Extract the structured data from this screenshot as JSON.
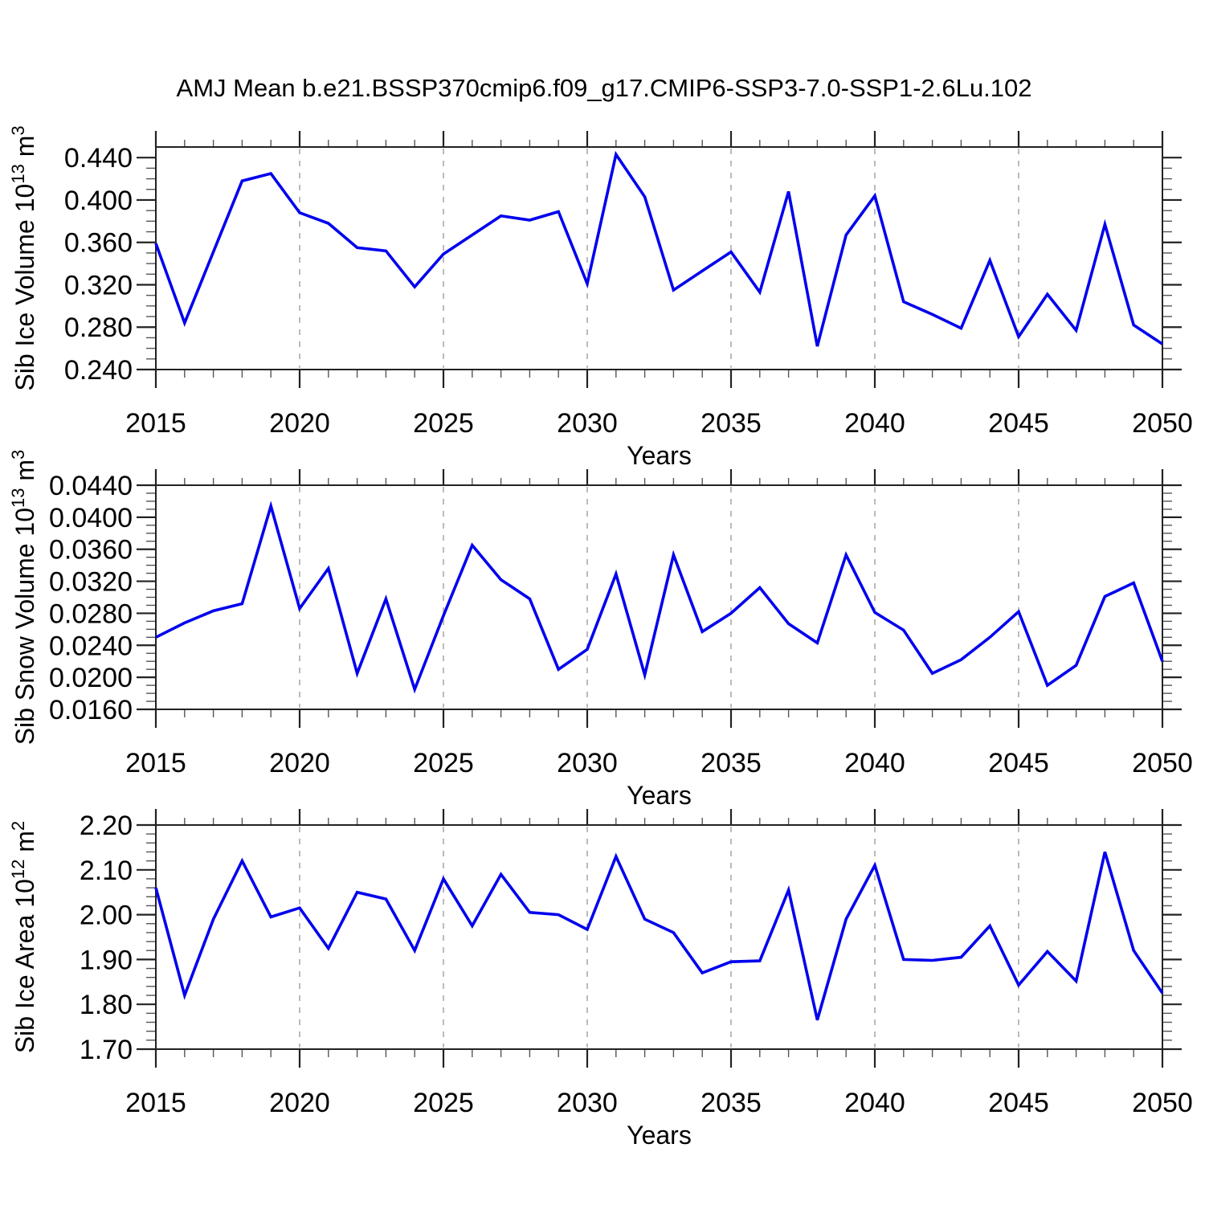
{
  "title": "AMJ Mean b.e21.BSSP370cmip6.f09_g17.CMIP6-SSP3-7.0-SSP1-2.6Lu.102",
  "background_color": "#ffffff",
  "line_color": "#0000ee",
  "grid_color": "#aaaaaa",
  "frame_color": "#222222",
  "chart_data": [
    {
      "type": "line",
      "name": "sib-ice-volume",
      "ylabel": {
        "base": "Sib Ice Volume 10",
        "exp": "13",
        "unit": " m",
        "unit_exp": "3"
      },
      "xlabel": "Years",
      "x": [
        2015,
        2016,
        2017,
        2018,
        2019,
        2020,
        2021,
        2022,
        2023,
        2024,
        2025,
        2026,
        2027,
        2028,
        2029,
        2030,
        2031,
        2032,
        2033,
        2034,
        2035,
        2036,
        2037,
        2038,
        2039,
        2040,
        2041,
        2042,
        2043,
        2044,
        2045,
        2046,
        2047,
        2048,
        2049,
        2050
      ],
      "values": [
        0.359,
        0.284,
        0.351,
        0.418,
        0.425,
        0.388,
        0.378,
        0.355,
        0.352,
        0.318,
        0.349,
        0.367,
        0.385,
        0.381,
        0.389,
        0.321,
        0.443,
        0.403,
        0.315,
        0.333,
        0.351,
        0.313,
        0.408,
        0.262,
        0.367,
        0.404,
        0.304,
        0.292,
        0.279,
        0.343,
        0.271,
        0.311,
        0.277,
        0.377,
        0.282,
        0.264
      ],
      "xlim": [
        2015,
        2050
      ],
      "ylim": [
        0.24,
        0.45
      ],
      "ytick_values": [
        0.24,
        0.28,
        0.32,
        0.36,
        0.4,
        0.44
      ],
      "ytick_labels": [
        "0.240",
        "0.280",
        "0.320",
        "0.360",
        "0.400",
        "0.440"
      ],
      "y_minor_step": 0.01,
      "xticks_major": [
        2015,
        2020,
        2025,
        2030,
        2035,
        2040,
        2045,
        2050
      ],
      "x_minor_step": 1,
      "gridlines_x": [
        2020,
        2025,
        2030,
        2035,
        2040,
        2045
      ],
      "grid": true,
      "legend": "none"
    },
    {
      "type": "line",
      "name": "sib-snow-volume",
      "ylabel": {
        "base": "Sib Snow Volume 10",
        "exp": "13",
        "unit": " m",
        "unit_exp": "3"
      },
      "xlabel": "Years",
      "x": [
        2015,
        2016,
        2017,
        2018,
        2019,
        2020,
        2021,
        2022,
        2023,
        2024,
        2025,
        2026,
        2027,
        2028,
        2029,
        2030,
        2031,
        2032,
        2033,
        2034,
        2035,
        2036,
        2037,
        2038,
        2039,
        2040,
        2041,
        2042,
        2043,
        2044,
        2045,
        2046,
        2047,
        2048,
        2049,
        2050
      ],
      "values": [
        0.025,
        0.0268,
        0.0283,
        0.0292,
        0.0414,
        0.0286,
        0.0336,
        0.0205,
        0.0298,
        0.0185,
        0.0277,
        0.0365,
        0.0322,
        0.0298,
        0.021,
        0.0235,
        0.0329,
        0.0203,
        0.0353,
        0.0257,
        0.028,
        0.0312,
        0.0267,
        0.0243,
        0.0353,
        0.0281,
        0.0259,
        0.0205,
        0.0222,
        0.025,
        0.0282,
        0.019,
        0.0215,
        0.0301,
        0.0318,
        0.022
      ],
      "xlim": [
        2015,
        2050
      ],
      "ylim": [
        0.016,
        0.044
      ],
      "ytick_values": [
        0.016,
        0.02,
        0.024,
        0.028,
        0.032,
        0.036,
        0.04,
        0.044
      ],
      "ytick_labels": [
        "0.0160",
        "0.0200",
        "0.0240",
        "0.0280",
        "0.0320",
        "0.0360",
        "0.0400",
        "0.0440"
      ],
      "y_minor_step": 0.001,
      "xticks_major": [
        2015,
        2020,
        2025,
        2030,
        2035,
        2040,
        2045,
        2050
      ],
      "x_minor_step": 1,
      "gridlines_x": [
        2020,
        2025,
        2030,
        2035,
        2040,
        2045
      ],
      "grid": true,
      "legend": "none"
    },
    {
      "type": "line",
      "name": "sib-ice-area",
      "ylabel": {
        "base": "Sib Ice Area 10",
        "exp": "12",
        "unit": " m",
        "unit_exp": "2"
      },
      "xlabel": "Years",
      "x": [
        2015,
        2016,
        2017,
        2018,
        2019,
        2020,
        2021,
        2022,
        2023,
        2024,
        2025,
        2026,
        2027,
        2028,
        2029,
        2030,
        2031,
        2032,
        2033,
        2034,
        2035,
        2036,
        2037,
        2038,
        2039,
        2040,
        2041,
        2042,
        2043,
        2044,
        2045,
        2046,
        2047,
        2048,
        2049,
        2050
      ],
      "values": [
        2.06,
        1.82,
        1.99,
        2.12,
        1.995,
        2.015,
        1.925,
        2.05,
        2.035,
        1.92,
        2.08,
        1.975,
        2.09,
        2.005,
        2.0,
        1.967,
        2.13,
        1.99,
        1.96,
        1.87,
        1.895,
        1.897,
        2.055,
        1.765,
        1.99,
        2.11,
        1.9,
        1.898,
        1.905,
        1.975,
        1.843,
        1.918,
        1.852,
        2.14,
        1.92,
        1.825
      ],
      "xlim": [
        2015,
        2050
      ],
      "ylim": [
        1.7,
        2.2
      ],
      "ytick_values": [
        1.7,
        1.8,
        1.9,
        2.0,
        2.1,
        2.2
      ],
      "ytick_labels": [
        "1.70",
        "1.80",
        "1.90",
        "2.00",
        "2.10",
        "2.20"
      ],
      "y_minor_step": 0.02,
      "xticks_major": [
        2015,
        2020,
        2025,
        2030,
        2035,
        2040,
        2045,
        2050
      ],
      "x_minor_step": 1,
      "gridlines_x": [
        2020,
        2025,
        2030,
        2035,
        2040,
        2045
      ],
      "grid": true,
      "legend": "none"
    }
  ]
}
